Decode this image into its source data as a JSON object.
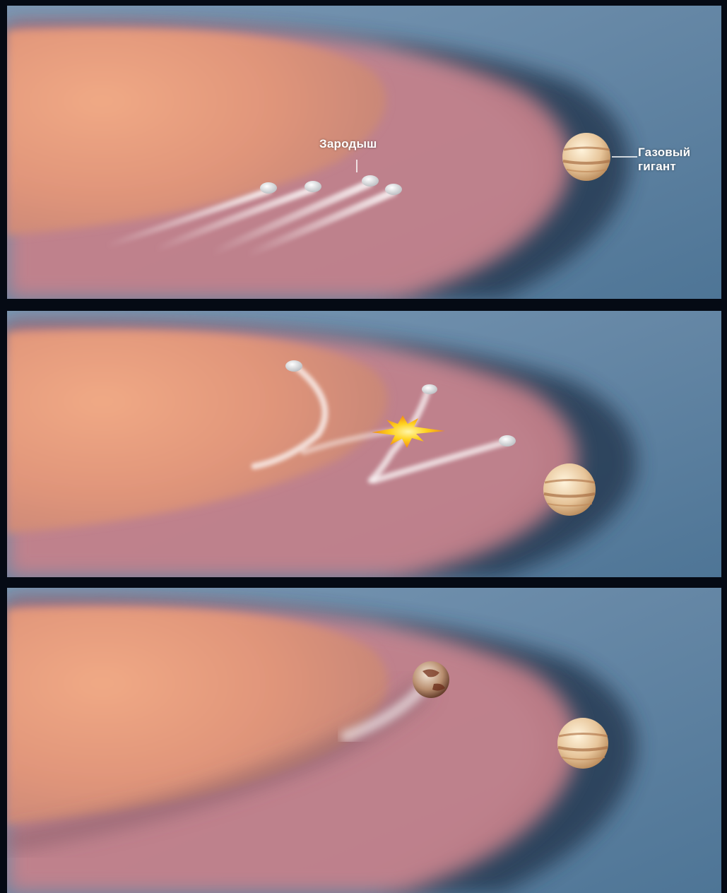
{
  "labels": {
    "embryo": "Зародыш",
    "giant_line1": "Газовый",
    "giant_line2": "гигант"
  },
  "colors": {
    "background": "#050a14",
    "outer_disk": "#5f86a8",
    "inner_disk": "#e8a07e",
    "planetesimal": "#f2f2f2",
    "collision_flash": "#ffd21e"
  },
  "panels": [
    {
      "stage": 1,
      "embryos": 4,
      "gas_giant": true
    },
    {
      "stage": 2,
      "embryos": 3,
      "collision": true,
      "gas_giant": true
    },
    {
      "stage": 3,
      "rocky_planet": true,
      "gas_giant": true
    }
  ]
}
